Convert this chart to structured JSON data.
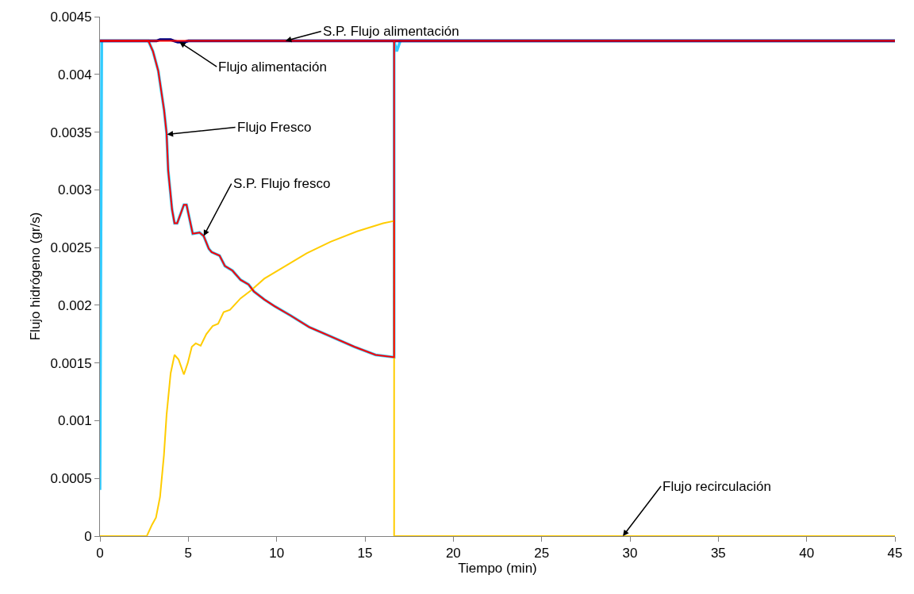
{
  "chart_data": {
    "type": "line",
    "xlabel": "Tiempo (min)",
    "ylabel": "Flujo hidrógeno (gr/s)",
    "xlim": [
      0,
      45
    ],
    "ylim": [
      0,
      0.0045
    ],
    "xticks": [
      0,
      5,
      10,
      15,
      20,
      25,
      30,
      35,
      40,
      45
    ],
    "yticks": [
      0,
      0.0005,
      0.001,
      0.0015,
      0.002,
      0.0025,
      0.003,
      0.0035,
      0.004,
      0.0045
    ],
    "marker": "none",
    "line_style": "solid",
    "series": [
      {
        "color": "#33ccff",
        "x": [
          0,
          0.1,
          2.74,
          3.0,
          3.3,
          3.63,
          3.77,
          3.86,
          4.08,
          4.22,
          4.37,
          4.75,
          4.9,
          5.25,
          5.64,
          5.87,
          6.16,
          6.32,
          6.77,
          7.07,
          7.5,
          7.96,
          8.41,
          8.71,
          9.3,
          9.9,
          10.8,
          11.85,
          13.05,
          14.4,
          15.6,
          16.65,
          16.65,
          16.8,
          17.0,
          45
        ],
        "values": [
          0.0004,
          0.00429,
          0.00429,
          0.0042,
          0.00403,
          0.00369,
          0.00349,
          0.00317,
          0.00283,
          0.00271,
          0.00271,
          0.00287,
          0.00287,
          0.00262,
          0.00263,
          0.0026,
          0.00249,
          0.00246,
          0.00243,
          0.00234,
          0.0023,
          0.00222,
          0.00218,
          0.00212,
          0.00205,
          0.00199,
          0.00191,
          0.00181,
          0.00173,
          0.00164,
          0.00157,
          0.00155,
          0.00429,
          0.0042,
          0.00429,
          0.00429
        ]
      },
      {
        "color": "#000080",
        "x": [
          0,
          3.2,
          3.4,
          4.0,
          4.2,
          4.4,
          4.8,
          5.0,
          45
        ],
        "values": [
          0.00429,
          0.00429,
          0.0043,
          0.0043,
          0.00429,
          0.00428,
          0.00428,
          0.00429,
          0.00429
        ]
      },
      {
        "color": "#ffcc00",
        "x": [
          0,
          2.65,
          2.95,
          3.17,
          3.4,
          3.62,
          3.77,
          4.0,
          4.22,
          4.45,
          4.75,
          4.97,
          5.2,
          5.42,
          5.7,
          6.02,
          6.38,
          6.69,
          7.0,
          7.36,
          7.96,
          8.56,
          9.3,
          10.5,
          11.7,
          13.05,
          14.55,
          16.03,
          16.65,
          16.65,
          45
        ],
        "values": [
          0,
          0,
          0.0001,
          0.00016,
          0.00034,
          0.0007,
          0.00105,
          0.00141,
          0.00157,
          0.00153,
          0.0014,
          0.0015,
          0.00164,
          0.00167,
          0.00165,
          0.00175,
          0.00182,
          0.00184,
          0.00194,
          0.00196,
          0.00206,
          0.00213,
          0.00223,
          0.00234,
          0.00245,
          0.00255,
          0.00264,
          0.00271,
          0.00273,
          0,
          0
        ]
      },
      {
        "color": "#ff0000",
        "x": [
          0,
          2.74,
          3.0,
          3.3,
          3.63,
          3.77,
          3.86,
          4.08,
          4.22,
          4.37,
          4.75,
          4.9,
          5.25,
          5.64,
          5.87,
          6.16,
          6.32,
          6.77,
          7.07,
          7.5,
          7.96,
          8.41,
          8.71,
          9.3,
          9.9,
          10.8,
          11.85,
          13.05,
          14.4,
          15.6,
          16.65,
          16.65
        ],
        "values": [
          0.00429,
          0.00429,
          0.0042,
          0.00403,
          0.00369,
          0.00349,
          0.00317,
          0.00283,
          0.00271,
          0.00271,
          0.00287,
          0.00287,
          0.00262,
          0.00263,
          0.0026,
          0.00249,
          0.00246,
          0.00243,
          0.00234,
          0.0023,
          0.00222,
          0.00218,
          0.00212,
          0.00205,
          0.00199,
          0.00191,
          0.00181,
          0.00173,
          0.00164,
          0.00157,
          0.00155,
          0.00429
        ]
      },
      {
        "color": "#ff0000",
        "x": [
          0,
          45
        ],
        "values": [
          0.00429,
          0.00429
        ]
      }
    ],
    "annotations": [
      {
        "text": "S.P. Flujo alimentación",
        "x": 10.5,
        "y": 0.00429
      },
      {
        "text": "Flujo alimentación",
        "x": 4.5,
        "y": 0.00428
      },
      {
        "text": "Flujo Fresco",
        "x": 3.8,
        "y": 0.00348
      },
      {
        "text": "S.P. Flujo fresco",
        "x": 5.87,
        "y": 0.0026
      },
      {
        "text": "Flujo recirculación",
        "x": 29.6,
        "y": 0
      }
    ]
  }
}
